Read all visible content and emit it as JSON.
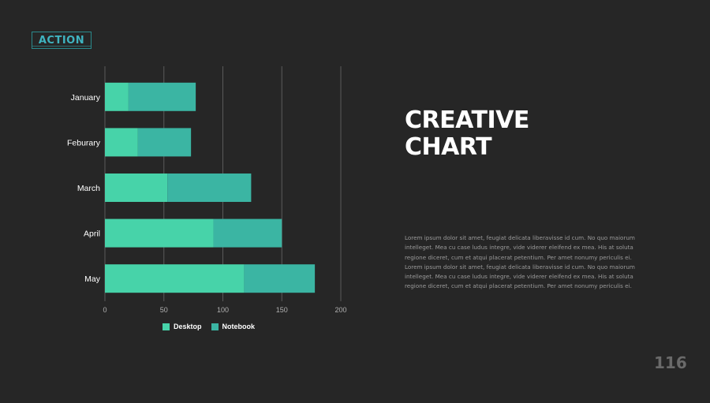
{
  "logo": {
    "text": "ACTION"
  },
  "slide": {
    "title_line1": "CREATIVE",
    "title_line2": "CHART",
    "body": "Lorem ipsum dolor sit amet, feugiat delicata liberavisse id cum. No quo maiorum intelleget. Mea cu case ludus integre, vide viderer eleifend ex mea. His at soluta regione diceret, cum et atqui placerat petentium. Per amet nonumy periculis ei. Lorem ipsum dolor sit amet, feugiat delicata liberavisse id cum. No quo maiorum intelleget. Mea cu case ludus integre, vide viderer eleifend ex mea. His at soluta regione diceret, cum et atqui placerat petentium. Per amet nonumy periculis ei.",
    "page_number": "116"
  },
  "colors": {
    "background": "#262626",
    "desktop": "#47d3a9",
    "notebook": "#3bb5a3",
    "gridline": "#5a5a5a",
    "axis_text": "#b0b0b0"
  },
  "chart_data": {
    "type": "bar",
    "orientation": "horizontal",
    "stacked": true,
    "categories": [
      "January",
      "Feburary",
      "March",
      "April",
      "May"
    ],
    "series": [
      {
        "name": "Desktop",
        "values": [
          20,
          28,
          53,
          92,
          118
        ]
      },
      {
        "name": "Notebook",
        "values": [
          57,
          45,
          71,
          58,
          60
        ]
      }
    ],
    "xlim": [
      0,
      200
    ],
    "x_ticks": [
      "0",
      "50",
      "100",
      "150",
      "200"
    ],
    "grid": true,
    "legend_position": "bottom"
  }
}
